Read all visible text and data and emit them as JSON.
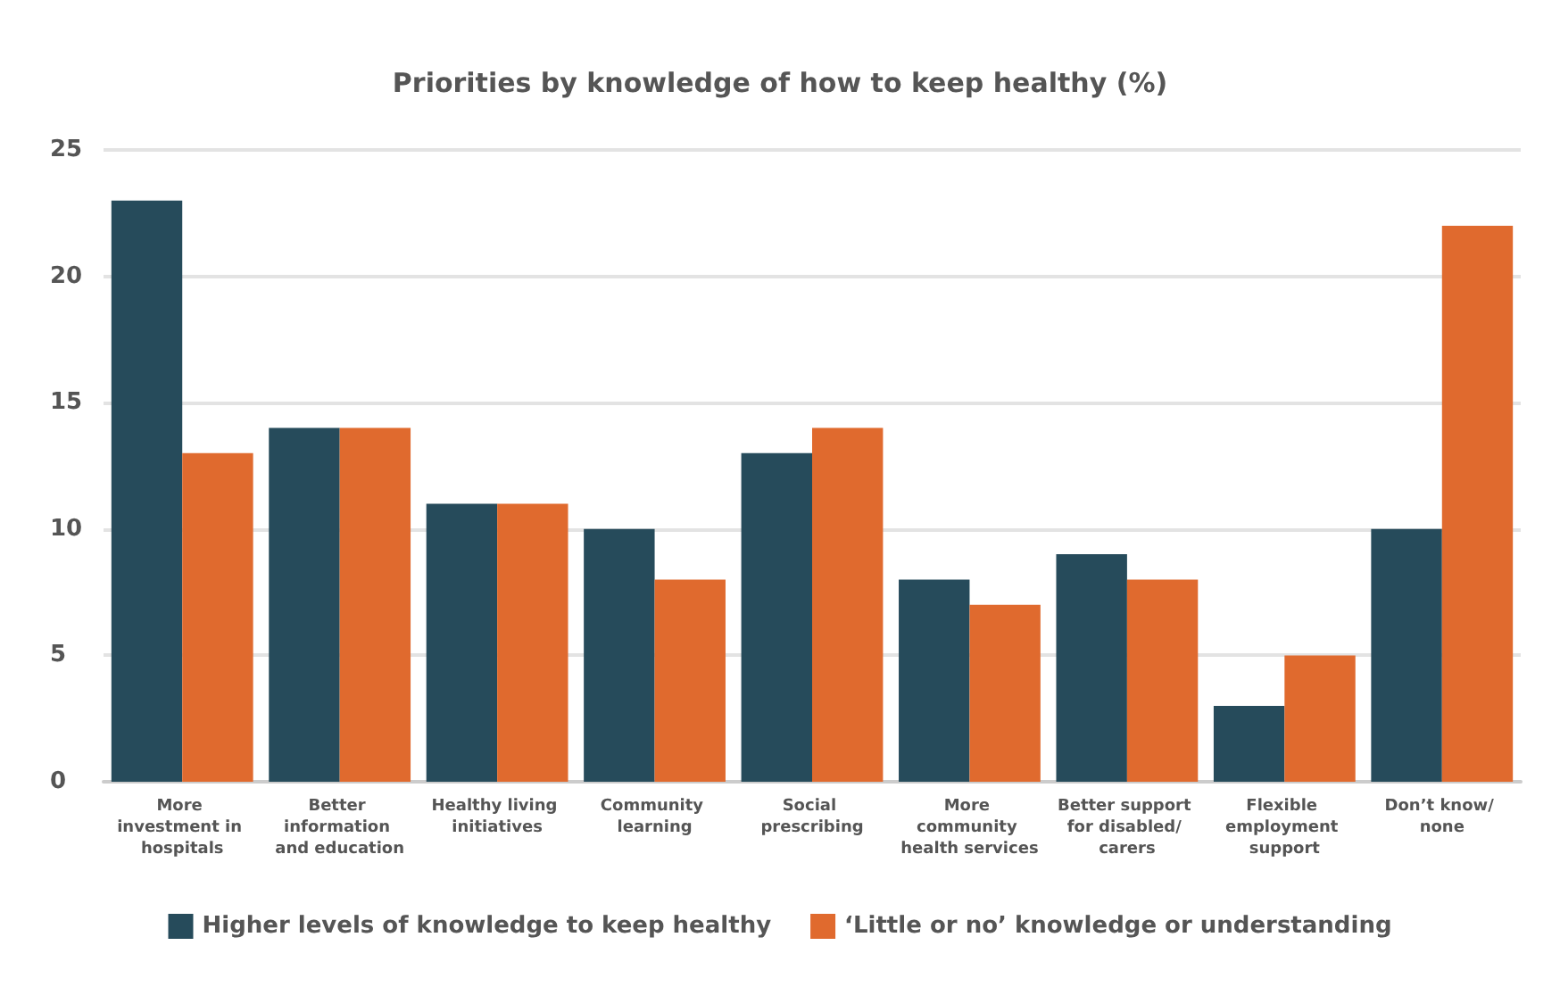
{
  "chart_data": {
    "type": "bar",
    "title": "Priorities by knowledge of how to keep healthy (%)",
    "categories": [
      "More investment in hospitals",
      "Better information and education",
      "Healthy living initiatives",
      "Community learning",
      "Social prescribing",
      "More community health services",
      "Better support for disabled/ carers",
      "Flexible employment support",
      "Don’t know/ none"
    ],
    "series": [
      {
        "name": "Higher levels of knowledge to keep healthy",
        "color": "#264b5b",
        "values": [
          23,
          14,
          11,
          10,
          13,
          8,
          9,
          3,
          10
        ]
      },
      {
        "name": "‘Little or no’ knowledge or understanding",
        "color": "#e06a2e",
        "values": [
          13,
          14,
          11,
          8,
          14,
          7,
          8,
          5,
          22
        ]
      }
    ],
    "ylim": [
      0,
      25
    ],
    "yticks": [
      0,
      5,
      10,
      15,
      20,
      25
    ],
    "grid": "y",
    "legend": "bottom"
  }
}
